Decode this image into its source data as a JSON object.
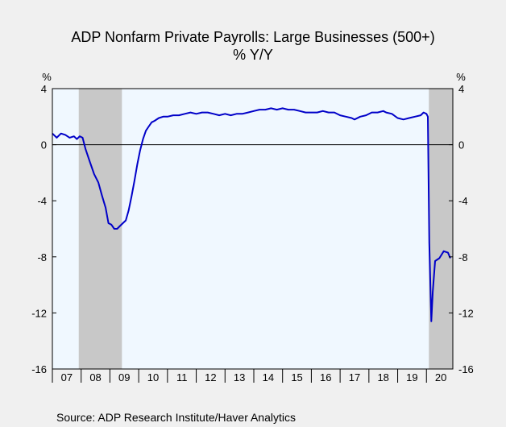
{
  "chart_data": {
    "type": "line",
    "title": "ADP Nonfarm Private Payrolls: Large Businesses (500+)",
    "subtitle": "% Y/Y",
    "left_unit": "%",
    "right_unit": "%",
    "ylim": [
      -16,
      4
    ],
    "y_ticks": [
      4,
      0,
      -4,
      -8,
      -12,
      -16
    ],
    "x_range": [
      2007.0,
      2020.9167
    ],
    "x_tick_labels": [
      "07",
      "08",
      "09",
      "10",
      "11",
      "12",
      "13",
      "14",
      "15",
      "16",
      "17",
      "18",
      "19",
      "20"
    ],
    "recessions": [
      [
        2007.9167,
        2009.4167
      ],
      [
        2020.0833,
        2020.9167
      ]
    ],
    "zero_line": true,
    "grid": false,
    "colors": {
      "line": "#0000c8",
      "recession": "#c8c8c8",
      "plot_background": "#f0f8ff",
      "page_background": "#f0f0f0"
    },
    "series": [
      {
        "x": [
          2007.0,
          2007.15,
          2007.3,
          2007.45,
          2007.6,
          2007.75,
          2007.85,
          2007.95,
          2008.05,
          2008.15,
          2008.3,
          2008.45,
          2008.6,
          2008.72,
          2008.85,
          2008.95,
          2009.05,
          2009.15,
          2009.25,
          2009.35,
          2009.45,
          2009.55,
          2009.65,
          2009.75,
          2009.85,
          2009.95,
          2010.05,
          2010.15,
          2010.25,
          2010.35,
          2010.45,
          2010.55,
          2010.7,
          2010.85,
          2011.0,
          2011.2,
          2011.4,
          2011.6,
          2011.8,
          2012.0,
          2012.2,
          2012.4,
          2012.6,
          2012.8,
          2013.0,
          2013.2,
          2013.4,
          2013.6,
          2013.8,
          2014.0,
          2014.2,
          2014.4,
          2014.6,
          2014.8,
          2015.0,
          2015.2,
          2015.4,
          2015.6,
          2015.8,
          2016.0,
          2016.2,
          2016.4,
          2016.6,
          2016.8,
          2017.0,
          2017.2,
          2017.4,
          2017.5,
          2017.7,
          2017.9,
          2018.1,
          2018.3,
          2018.5,
          2018.6,
          2018.8,
          2019.0,
          2019.2,
          2019.4,
          2019.6,
          2019.8,
          2019.9,
          2020.0,
          2020.05,
          2020.1,
          2020.17,
          2020.22,
          2020.3,
          2020.45,
          2020.6,
          2020.75,
          2020.83
        ],
        "y": [
          0.8,
          0.5,
          0.8,
          0.7,
          0.5,
          0.6,
          0.4,
          0.6,
          0.5,
          -0.3,
          -1.2,
          -2.1,
          -2.7,
          -3.6,
          -4.5,
          -5.6,
          -5.7,
          -6.0,
          -6.0,
          -5.8,
          -5.6,
          -5.4,
          -4.7,
          -3.7,
          -2.6,
          -1.4,
          -0.4,
          0.4,
          1.0,
          1.3,
          1.6,
          1.7,
          1.9,
          2.0,
          2.0,
          2.1,
          2.1,
          2.2,
          2.3,
          2.2,
          2.3,
          2.3,
          2.2,
          2.1,
          2.2,
          2.1,
          2.2,
          2.2,
          2.3,
          2.4,
          2.5,
          2.5,
          2.6,
          2.5,
          2.6,
          2.5,
          2.5,
          2.4,
          2.3,
          2.3,
          2.3,
          2.4,
          2.3,
          2.3,
          2.1,
          2.0,
          1.9,
          1.8,
          2.0,
          2.1,
          2.3,
          2.3,
          2.4,
          2.3,
          2.2,
          1.9,
          1.8,
          1.9,
          2.0,
          2.1,
          2.3,
          2.2,
          2.0,
          -7.0,
          -12.6,
          -10.5,
          -8.3,
          -8.1,
          -7.6,
          -7.7,
          -8.1
        ]
      }
    ]
  },
  "source": "Source:  ADP Research Institute/Haver Analytics"
}
